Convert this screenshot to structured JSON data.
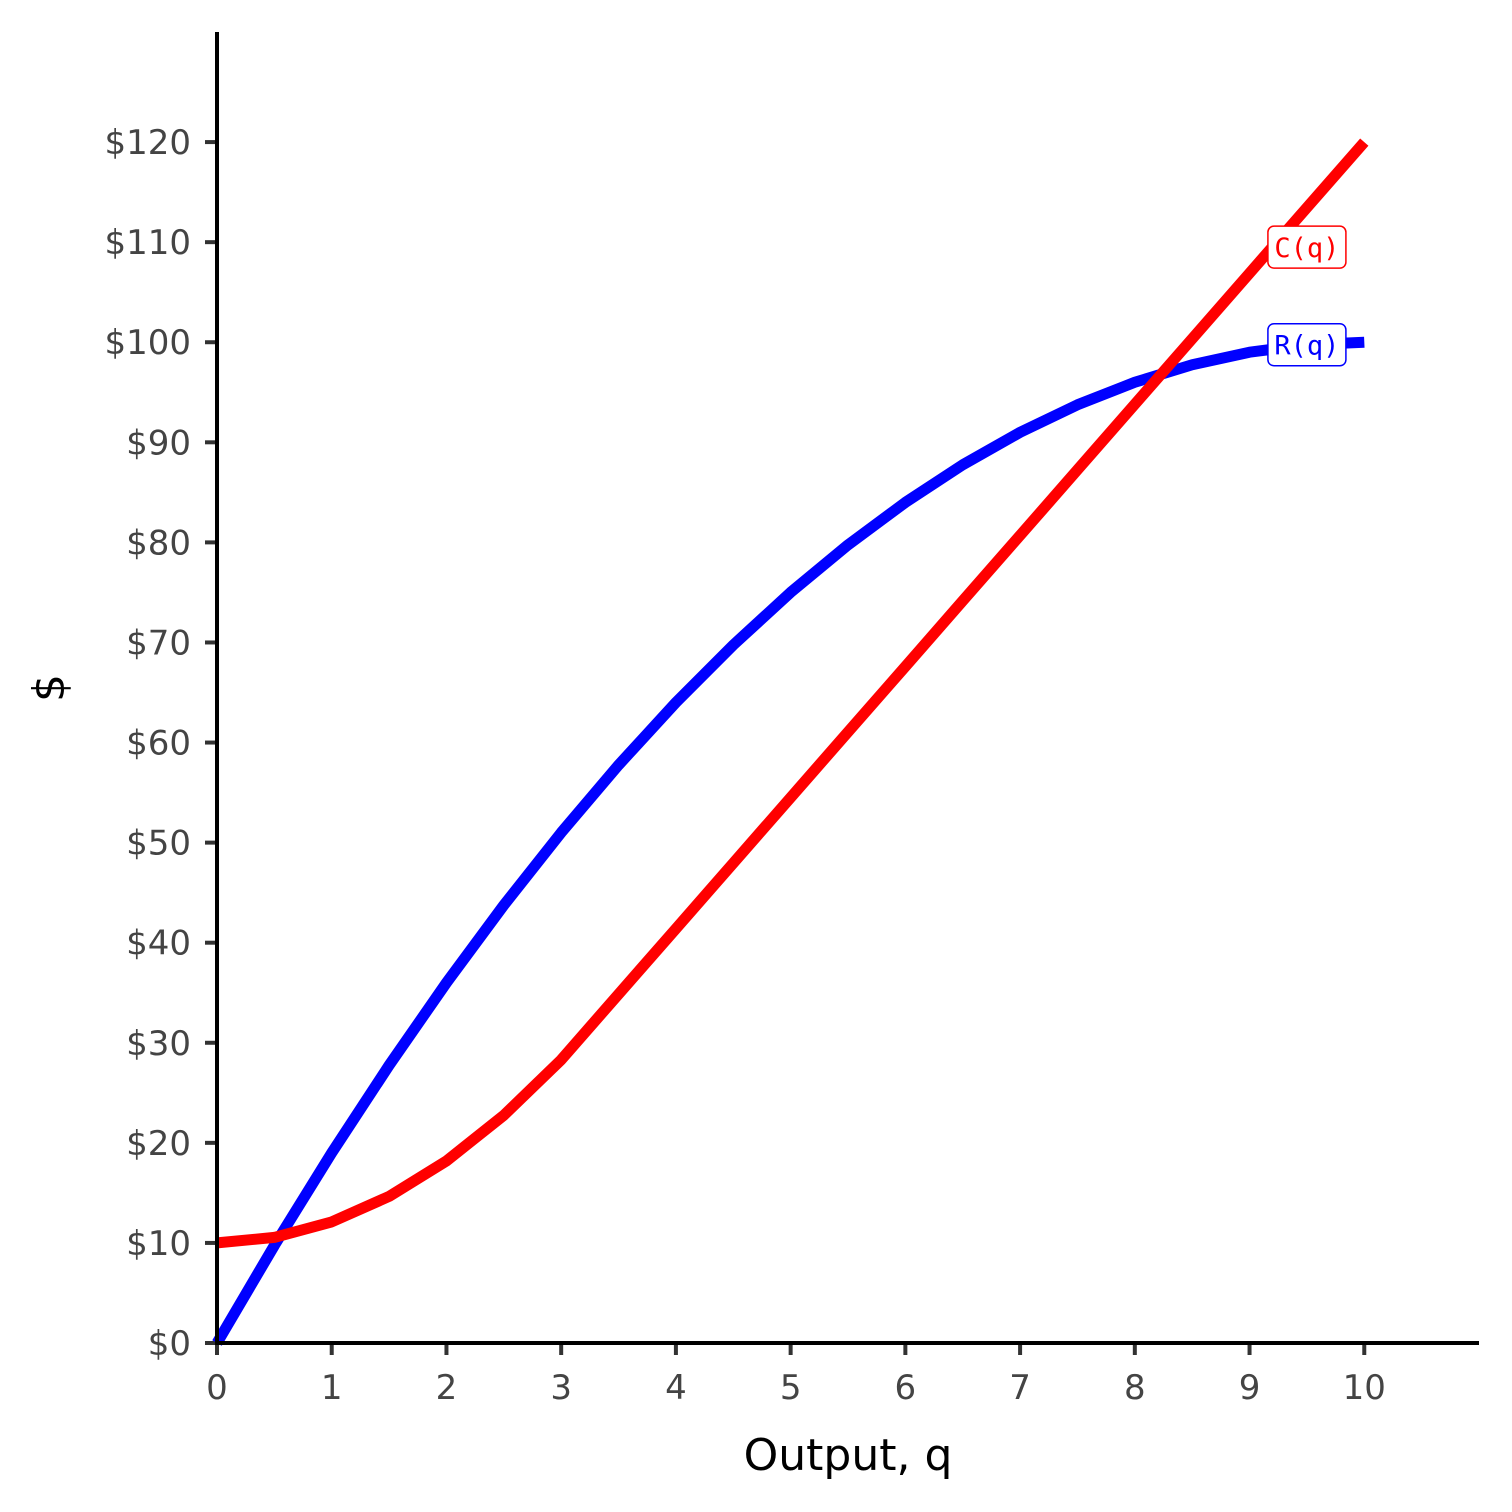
{
  "chart_data": {
    "type": "line",
    "xlabel": "Output, q",
    "ylabel": "$",
    "xlim": [
      0,
      11
    ],
    "ylim": [
      0,
      131
    ],
    "x_ticks": [
      0,
      1,
      2,
      3,
      4,
      5,
      6,
      7,
      8,
      9,
      10
    ],
    "x_tick_labels": [
      "0",
      "1",
      "2",
      "3",
      "4",
      "5",
      "6",
      "7",
      "8",
      "9",
      "10"
    ],
    "y_ticks": [
      0,
      10,
      20,
      30,
      40,
      50,
      60,
      70,
      80,
      90,
      100,
      110,
      120
    ],
    "y_tick_labels": [
      "$0",
      "$10",
      "$20",
      "$30",
      "$40",
      "$50",
      "$60",
      "$70",
      "$80",
      "$90",
      "$100",
      "$110",
      "$120"
    ],
    "grid": false,
    "legend": "none",
    "series": [
      {
        "name": "R(q)",
        "color": "#0000ff",
        "x": [
          0,
          0.5,
          1,
          1.5,
          2,
          2.5,
          3,
          3.5,
          4,
          4.5,
          5,
          5.5,
          6,
          6.5,
          7,
          7.5,
          8,
          8.5,
          9,
          9.5,
          10
        ],
        "y": [
          0,
          9.75,
          19,
          27.75,
          36,
          43.75,
          51,
          57.75,
          64,
          69.75,
          75,
          79.75,
          84,
          87.75,
          91,
          93.75,
          96,
          97.75,
          99,
          99.75,
          100
        ],
        "label": {
          "text": "R(q)",
          "x": 9.5,
          "y": 99.75
        }
      },
      {
        "name": "C(q)",
        "color": "#ff0000",
        "x": [
          0,
          0.5,
          1,
          1.5,
          2,
          2.5,
          3,
          3.5,
          4,
          4.5,
          5,
          5.5,
          6,
          6.5,
          7,
          7.5,
          8,
          8.5,
          9,
          9.5,
          10
        ],
        "y": [
          10,
          10.55,
          12.1,
          14.65,
          18.2,
          22.75,
          28.3,
          34.85,
          41.4,
          47.95,
          54.5,
          61.05,
          67.6,
          74.15,
          80.7,
          87.25,
          93.8,
          100.35,
          106.9,
          113.45,
          120
        ],
        "label": {
          "text": "C(q)",
          "x": 9.5,
          "y": 109.5
        }
      }
    ]
  }
}
